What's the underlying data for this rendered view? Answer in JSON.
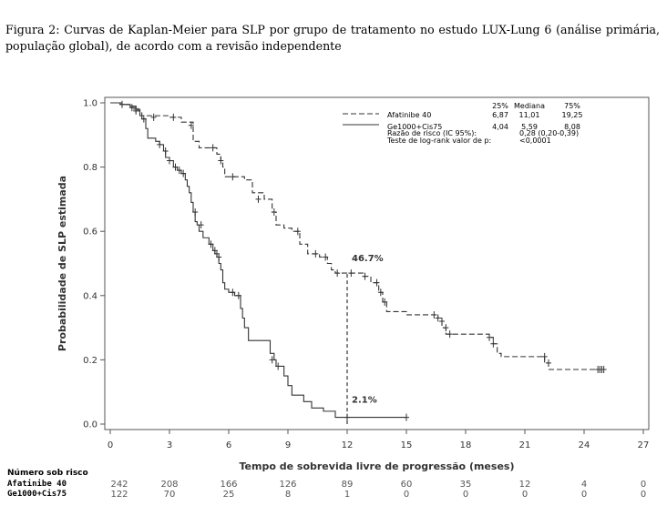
{
  "caption": {
    "line1": "Figura 2: Curvas de Kaplan-Meier para SLP por grupo de tratamento no estudo LUX-Lung 6 (análise primária,",
    "line2": "população global), de acordo com a revisão independente"
  },
  "chart_data": {
    "type": "line",
    "xlabel": "Tempo de sobrevida livre de progressão (meses)",
    "ylabel": "Probabilidade de SLP estimada",
    "xlim": [
      0,
      27
    ],
    "ylim": [
      0,
      1
    ],
    "x_ticks": [
      "0",
      "3",
      "6",
      "9",
      "12",
      "15",
      "18",
      "21",
      "24",
      "27"
    ],
    "y_ticks": [
      "0.0",
      "0.2",
      "0.4",
      "0.6",
      "0.8",
      "1.0"
    ],
    "legend_position": "top-right",
    "series": [
      {
        "name": "Afatinibe 40",
        "line_style": "dashed",
        "steps": [
          [
            0,
            1.0
          ],
          [
            0.5,
            0.995
          ],
          [
            1.0,
            0.985
          ],
          [
            1.4,
            0.975
          ],
          [
            1.6,
            0.96
          ],
          [
            3.0,
            0.955
          ],
          [
            3.6,
            0.94
          ],
          [
            4.2,
            0.88
          ],
          [
            4.5,
            0.86
          ],
          [
            5.4,
            0.84
          ],
          [
            5.6,
            0.82
          ],
          [
            5.7,
            0.8
          ],
          [
            5.8,
            0.77
          ],
          [
            6.4,
            0.77
          ],
          [
            6.8,
            0.76
          ],
          [
            7.2,
            0.72
          ],
          [
            7.8,
            0.7
          ],
          [
            8.2,
            0.66
          ],
          [
            8.4,
            0.62
          ],
          [
            8.8,
            0.61
          ],
          [
            9.2,
            0.6
          ],
          [
            9.6,
            0.56
          ],
          [
            10.0,
            0.53
          ],
          [
            10.6,
            0.52
          ],
          [
            11.0,
            0.5
          ],
          [
            11.2,
            0.48
          ],
          [
            11.4,
            0.47
          ],
          [
            12.8,
            0.46
          ],
          [
            13.2,
            0.44
          ],
          [
            13.6,
            0.41
          ],
          [
            13.8,
            0.38
          ],
          [
            14.0,
            0.35
          ],
          [
            15.0,
            0.34
          ],
          [
            16.6,
            0.33
          ],
          [
            16.8,
            0.3
          ],
          [
            17.0,
            0.28
          ],
          [
            17.2,
            0.28
          ],
          [
            19.2,
            0.27
          ],
          [
            19.4,
            0.25
          ],
          [
            19.6,
            0.22
          ],
          [
            19.8,
            0.21
          ],
          [
            21.8,
            0.21
          ],
          [
            22.0,
            0.19
          ],
          [
            22.2,
            0.17
          ],
          [
            25.0,
            0.17
          ]
        ],
        "censored": [
          [
            0.6,
            0.995
          ],
          [
            1.1,
            0.985
          ],
          [
            1.3,
            0.975
          ],
          [
            2.2,
            0.955
          ],
          [
            3.2,
            0.955
          ],
          [
            4.1,
            0.93
          ],
          [
            5.2,
            0.86
          ],
          [
            5.6,
            0.82
          ],
          [
            6.2,
            0.77
          ],
          [
            7.5,
            0.7
          ],
          [
            8.3,
            0.66
          ],
          [
            9.5,
            0.6
          ],
          [
            10.4,
            0.53
          ],
          [
            10.9,
            0.52
          ],
          [
            11.5,
            0.47
          ],
          [
            12.2,
            0.47
          ],
          [
            12.9,
            0.46
          ],
          [
            13.5,
            0.44
          ],
          [
            13.7,
            0.41
          ],
          [
            13.9,
            0.38
          ],
          [
            16.4,
            0.34
          ],
          [
            16.6,
            0.33
          ],
          [
            16.8,
            0.32
          ],
          [
            17.0,
            0.3
          ],
          [
            17.2,
            0.28
          ],
          [
            19.2,
            0.27
          ],
          [
            19.4,
            0.25
          ],
          [
            22.0,
            0.21
          ],
          [
            22.2,
            0.19
          ],
          [
            24.7,
            0.17
          ],
          [
            24.8,
            0.17
          ],
          [
            24.9,
            0.17
          ],
          [
            25.0,
            0.17
          ]
        ]
      },
      {
        "name": "Ge1000+Cis75",
        "line_style": "solid",
        "steps": [
          [
            0,
            1.0
          ],
          [
            0.6,
            0.995
          ],
          [
            1.0,
            0.99
          ],
          [
            1.3,
            0.98
          ],
          [
            1.5,
            0.96
          ],
          [
            1.6,
            0.95
          ],
          [
            1.8,
            0.92
          ],
          [
            1.9,
            0.89
          ],
          [
            2.3,
            0.88
          ],
          [
            2.5,
            0.87
          ],
          [
            2.7,
            0.85
          ],
          [
            2.8,
            0.83
          ],
          [
            3.0,
            0.82
          ],
          [
            3.2,
            0.8
          ],
          [
            3.4,
            0.79
          ],
          [
            3.6,
            0.78
          ],
          [
            3.8,
            0.76
          ],
          [
            3.9,
            0.74
          ],
          [
            4.0,
            0.72
          ],
          [
            4.1,
            0.69
          ],
          [
            4.2,
            0.66
          ],
          [
            4.3,
            0.63
          ],
          [
            4.4,
            0.62
          ],
          [
            4.5,
            0.6
          ],
          [
            4.7,
            0.58
          ],
          [
            5.0,
            0.56
          ],
          [
            5.2,
            0.54
          ],
          [
            5.3,
            0.53
          ],
          [
            5.4,
            0.52
          ],
          [
            5.5,
            0.5
          ],
          [
            5.6,
            0.48
          ],
          [
            5.7,
            0.44
          ],
          [
            5.8,
            0.42
          ],
          [
            6.0,
            0.41
          ],
          [
            6.3,
            0.4
          ],
          [
            6.6,
            0.36
          ],
          [
            6.7,
            0.33
          ],
          [
            6.8,
            0.3
          ],
          [
            7.0,
            0.26
          ],
          [
            8.0,
            0.26
          ],
          [
            8.1,
            0.22
          ],
          [
            8.3,
            0.2
          ],
          [
            8.4,
            0.18
          ],
          [
            8.8,
            0.15
          ],
          [
            9.0,
            0.12
          ],
          [
            9.2,
            0.09
          ],
          [
            9.8,
            0.07
          ],
          [
            10.2,
            0.05
          ],
          [
            10.8,
            0.04
          ],
          [
            11.4,
            0.021
          ],
          [
            15.0,
            0.021
          ]
        ],
        "censored": [
          [
            1.3,
            0.98
          ],
          [
            1.7,
            0.95
          ],
          [
            2.5,
            0.87
          ],
          [
            2.8,
            0.85
          ],
          [
            3.0,
            0.82
          ],
          [
            3.3,
            0.8
          ],
          [
            3.5,
            0.79
          ],
          [
            3.7,
            0.78
          ],
          [
            4.3,
            0.66
          ],
          [
            4.6,
            0.62
          ],
          [
            5.1,
            0.56
          ],
          [
            5.3,
            0.54
          ],
          [
            5.4,
            0.53
          ],
          [
            5.5,
            0.52
          ],
          [
            6.2,
            0.41
          ],
          [
            6.5,
            0.4
          ],
          [
            8.2,
            0.2
          ],
          [
            8.5,
            0.18
          ],
          [
            12.0,
            0.021
          ],
          [
            15.0,
            0.021
          ]
        ]
      }
    ],
    "annotations": [
      {
        "text": "46.7%",
        "x": 12,
        "y": 0.467
      },
      {
        "text": "2.1%",
        "x": 12,
        "y": 0.021
      }
    ],
    "stats_header": [
      "25%",
      "Mediana",
      "75%"
    ],
    "stats_rows": [
      {
        "label": "Afatinibe 40",
        "values": [
          "6,87",
          "11,01",
          "19,25"
        ]
      },
      {
        "label": "Ge1000+Cis75",
        "values": [
          "4,04",
          "5,59",
          "8,08"
        ]
      },
      {
        "label": "Razão de risco (IC 95%):",
        "values": [
          "0,28 (0,20-0,39)"
        ]
      },
      {
        "label": "Teste de log-rank valor de p:",
        "values": [
          "<0,0001"
        ]
      }
    ]
  },
  "risk_table": {
    "title": "Número sob risco",
    "times": [
      0,
      3,
      6,
      9,
      12,
      15,
      18,
      21,
      24,
      27
    ],
    "rows": [
      {
        "label": "Afatinibe 40",
        "values": [
          "242",
          "208",
          "166",
          "126",
          "89",
          "60",
          "35",
          "12",
          "4",
          "0"
        ]
      },
      {
        "label": "Ge1000+Cis75",
        "values": [
          "122",
          "70",
          "25",
          "8",
          "1",
          "0",
          "0",
          "0",
          "0",
          "0"
        ]
      }
    ]
  }
}
